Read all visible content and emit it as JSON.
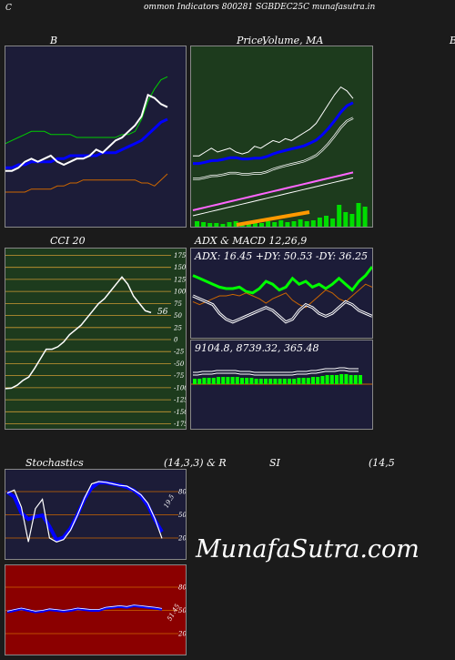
{
  "header": {
    "left": "C",
    "title": "ommon  Indicators 800281 SGBDEC25C munafasutra.in"
  },
  "watermark": "MunafaSutra.com",
  "panels": {
    "bollinger": {
      "title": "B"
    },
    "price": {
      "title_a": "Price,",
      "title_b": "Volume, MA",
      "right_edge": "B"
    },
    "cci": {
      "title": "CCI 20",
      "last_value": "56",
      "ticks": [
        "175",
        "150",
        "125",
        "100",
        "75",
        "50",
        "25",
        "0",
        "-25",
        "-50",
        "-75",
        "-100",
        "-125",
        "-150",
        "-175"
      ]
    },
    "adx": {
      "title": "ADX  & MACD 12,26,9",
      "readout": "ADX: 16.45  +DY: 50.53 -DY: 36.25"
    },
    "macd": {
      "readout": "9104.8,  8739.32,  365.48"
    },
    "stoch": {
      "title_left": "Stochastics",
      "title_mid": "(14,3,3) & R",
      "title_si": "SI",
      "title_right": "(14,5",
      "ticks": [
        "80",
        "50",
        "20"
      ],
      "last_value": "19.5"
    },
    "rsi": {
      "ticks": [
        "80",
        "50",
        "20"
      ],
      "last_value": "51.45"
    }
  },
  "colors": {
    "bollinger_bg": "#1c1c38",
    "price_bg": "#1d3b1d",
    "cci_bg": "#1d3b1d",
    "adx_bg": "#1c1c38",
    "stoch_bg": "#1c1c38",
    "rsi_bg": "#8b0000"
  },
  "chart_data": [
    {
      "type": "line",
      "panel": "bollinger",
      "y": [
        {
          "name": "upper",
          "color": "#00cc00",
          "values": [
            58,
            59,
            60,
            61,
            62,
            62,
            62,
            61,
            61,
            61,
            61,
            60,
            60,
            60,
            60,
            60,
            60,
            60,
            61,
            61,
            62,
            66,
            72,
            76,
            79,
            80
          ]
        },
        {
          "name": "middle",
          "color": "#0000ff",
          "values": [
            50,
            50,
            51,
            51,
            52,
            52,
            52,
            52,
            53,
            53,
            54,
            54,
            54,
            54,
            54,
            55,
            55,
            55,
            56,
            57,
            58,
            59,
            61,
            63,
            65,
            66
          ]
        },
        {
          "name": "lower",
          "color": "#cc6600",
          "values": [
            42,
            42,
            42,
            42,
            43,
            43,
            43,
            43,
            44,
            44,
            45,
            45,
            46,
            46,
            46,
            46,
            46,
            46,
            46,
            46,
            46,
            45,
            45,
            44,
            46,
            48
          ]
        },
        {
          "name": "price",
          "color": "#ffffff",
          "values": [
            49,
            49,
            50,
            52,
            53,
            52,
            53,
            54,
            52,
            51,
            52,
            53,
            53,
            54,
            56,
            55,
            57,
            59,
            60,
            62,
            64,
            67,
            74,
            73,
            71,
            70
          ]
        }
      ]
    },
    {
      "type": "line",
      "panel": "price",
      "price": [
        38,
        38,
        40,
        42,
        40,
        41,
        42,
        40,
        39,
        40,
        43,
        42,
        44,
        46,
        45,
        47,
        46,
        48,
        50,
        52,
        55,
        60,
        65,
        70,
        74,
        72,
        68
      ],
      "volume": [
        6,
        5,
        4,
        4,
        3,
        5,
        6,
        4,
        3,
        5,
        4,
        6,
        5,
        7,
        5,
        6,
        8,
        6,
        7,
        10,
        12,
        9,
        24,
        16,
        14,
        26,
        22
      ]
    },
    {
      "type": "line",
      "panel": "cci",
      "values": [
        -102,
        -101,
        -95,
        -85,
        -78,
        -60,
        -40,
        -20,
        -20,
        -15,
        -5,
        10,
        20,
        30,
        45,
        60,
        75,
        85,
        100,
        115,
        130,
        115,
        90,
        75,
        60,
        56
      ]
    },
    {
      "type": "line",
      "panel": "adx",
      "series": [
        {
          "name": "+DI",
          "color": "#00ff00",
          "values": [
            44,
            42,
            40,
            38,
            36,
            35,
            35,
            36,
            33,
            32,
            35,
            40,
            38,
            34,
            36,
            42,
            38,
            40,
            36,
            38,
            35,
            38,
            42,
            38,
            34,
            40,
            44,
            50
          ]
        },
        {
          "name": "-DI",
          "color": "#cc6600",
          "values": [
            26,
            24,
            26,
            28,
            30,
            30,
            31,
            30,
            32,
            30,
            28,
            25,
            28,
            30,
            32,
            27,
            24,
            22,
            26,
            30,
            34,
            32,
            28,
            26,
            30,
            34,
            38,
            36
          ]
        },
        {
          "name": "ADX",
          "color": "#ffffff",
          "values": [
            30,
            28,
            26,
            24,
            18,
            14,
            12,
            14,
            16,
            18,
            20,
            22,
            20,
            16,
            12,
            14,
            20,
            24,
            22,
            18,
            16,
            18,
            22,
            26,
            24,
            20,
            18,
            16
          ]
        }
      ]
    },
    {
      "type": "bar",
      "panel": "macd",
      "histogram": [
        6,
        6,
        7,
        7,
        7,
        8,
        8,
        8,
        8,
        8,
        7,
        7,
        7,
        6,
        6,
        6,
        6,
        6,
        6,
        6,
        6,
        6,
        7,
        7,
        7,
        8,
        8,
        9,
        10,
        10,
        10,
        11,
        11,
        10,
        10,
        10
      ]
    },
    {
      "type": "line",
      "panel": "stoch",
      "values": [
        78,
        82,
        60,
        15,
        58,
        70,
        20,
        15,
        18,
        30,
        50,
        72,
        90,
        93,
        92,
        90,
        88,
        87,
        82,
        76,
        65,
        45,
        19.5
      ]
    },
    {
      "type": "line",
      "panel": "rsi",
      "values": [
        48,
        50,
        52,
        50,
        48,
        49,
        51,
        50,
        49,
        50,
        52,
        51,
        50,
        50,
        53,
        54,
        55,
        54,
        56,
        55,
        54,
        53,
        51.45
      ]
    }
  ]
}
